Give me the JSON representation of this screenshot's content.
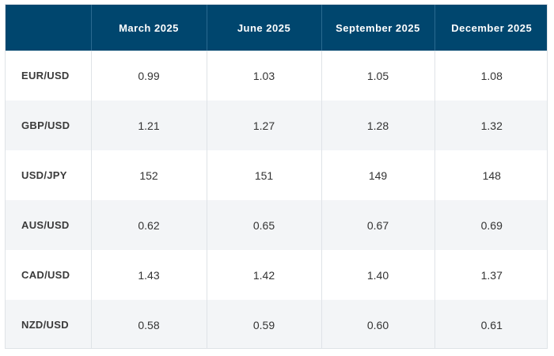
{
  "table": {
    "corner": "",
    "columns": [
      "March 2025",
      "June 2025",
      "September 2025",
      "December 2025"
    ],
    "rows": [
      {
        "pair": "EUR/USD",
        "values": [
          "0.99",
          "1.03",
          "1.05",
          "1.08"
        ]
      },
      {
        "pair": "GBP/USD",
        "values": [
          "1.21",
          "1.27",
          "1.28",
          "1.32"
        ]
      },
      {
        "pair": "USD/JPY",
        "values": [
          "152",
          "151",
          "149",
          "148"
        ]
      },
      {
        "pair": "AUS/USD",
        "values": [
          "0.62",
          "0.65",
          "0.67",
          "0.69"
        ]
      },
      {
        "pair": "CAD/USD",
        "values": [
          "1.43",
          "1.42",
          "1.40",
          "1.37"
        ]
      },
      {
        "pair": "NZD/USD",
        "values": [
          "0.58",
          "0.59",
          "0.60",
          "0.61"
        ]
      }
    ]
  },
  "colors": {
    "header_bg": "#00466e",
    "header_text": "#ffffff",
    "row_alt_bg": "#f3f5f7",
    "grid_line": "#dfe3e7"
  }
}
